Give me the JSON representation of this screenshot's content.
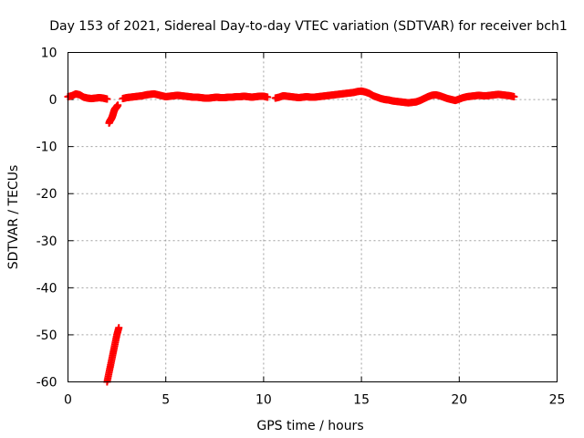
{
  "chart_data": {
    "type": "scatter",
    "title": "Day 153 of 2021, Sidereal Day-to-day VTEC variation (SDTVAR) for receiver bch1",
    "xlabel": "GPS time / hours",
    "ylabel": "SDTVAR / TECUs",
    "xlim": [
      0,
      25
    ],
    "ylim": [
      -60,
      10
    ],
    "xticks": [
      0,
      5,
      10,
      15,
      20,
      25
    ],
    "yticks": [
      -60,
      -50,
      -40,
      -30,
      -20,
      -10,
      0,
      10
    ],
    "grid": true,
    "marker": "plus",
    "series": [
      {
        "name": "SDTVAR",
        "color": "#ff0000",
        "segments": [
          {
            "x": [
              0.0,
              0.2,
              0.4,
              0.6,
              0.8,
              1.0,
              1.2,
              1.4,
              1.6,
              1.8,
              2.0
            ],
            "y": [
              0.6,
              0.8,
              1.2,
              1.0,
              0.5,
              0.3,
              0.2,
              0.3,
              0.4,
              0.3,
              0.1
            ]
          },
          {
            "x": [
              2.1,
              2.15,
              2.2,
              2.25,
              2.3,
              2.35,
              2.4,
              2.45,
              2.5,
              2.55
            ],
            "y": [
              -5.0,
              -4.5,
              -4.2,
              -3.8,
              -3.2,
              -2.5,
              -2.0,
              -1.8,
              -1.5,
              -1.2
            ]
          },
          {
            "x": [
              2.0,
              2.1,
              2.2,
              2.3,
              2.4,
              2.5,
              2.6
            ],
            "y": [
              -60.0,
              -58.0,
              -56.0,
              -54.0,
              -52.0,
              -50.0,
              -48.5
            ]
          },
          {
            "x": [
              2.8,
              3.0,
              3.2,
              3.4,
              3.6,
              3.8,
              4.0,
              4.2,
              4.4,
              4.6,
              4.8,
              5.0,
              5.2,
              5.4,
              5.6,
              5.8,
              6.0,
              6.2,
              6.4,
              6.6,
              6.8,
              7.0,
              7.2,
              7.4,
              7.6,
              7.8,
              8.0,
              8.2,
              8.4,
              8.6,
              8.8,
              9.0,
              9.2,
              9.4,
              9.6,
              9.8,
              10.0,
              10.2
            ],
            "y": [
              0.2,
              0.4,
              0.5,
              0.6,
              0.7,
              0.8,
              1.0,
              1.1,
              1.2,
              1.0,
              0.8,
              0.6,
              0.7,
              0.8,
              0.9,
              0.8,
              0.7,
              0.6,
              0.5,
              0.5,
              0.4,
              0.3,
              0.3,
              0.4,
              0.5,
              0.4,
              0.4,
              0.5,
              0.5,
              0.6,
              0.6,
              0.7,
              0.6,
              0.5,
              0.6,
              0.7,
              0.7,
              0.5
            ]
          },
          {
            "x": [
              10.6,
              10.8,
              11.0,
              11.2,
              11.4,
              11.6,
              11.8,
              12.0,
              12.2,
              12.4,
              12.6,
              12.8,
              13.0,
              13.2,
              13.4,
              13.6,
              13.8,
              14.0,
              14.2,
              14.4,
              14.6,
              14.8,
              15.0,
              15.2,
              15.4,
              15.6,
              15.8,
              16.0,
              16.2,
              16.4,
              16.6,
              16.8,
              17.0,
              17.2,
              17.4,
              17.6,
              17.8,
              18.0,
              18.2,
              18.4,
              18.6,
              18.8,
              19.0,
              19.2,
              19.4,
              19.6,
              19.8,
              20.0,
              20.2,
              20.4,
              20.6,
              20.8,
              21.0,
              21.2,
              21.4,
              21.6,
              21.8,
              22.0,
              22.2,
              22.4,
              22.6,
              22.8
            ],
            "y": [
              0.3,
              0.5,
              0.8,
              0.7,
              0.6,
              0.5,
              0.4,
              0.5,
              0.6,
              0.5,
              0.5,
              0.6,
              0.7,
              0.8,
              0.9,
              1.0,
              1.1,
              1.2,
              1.3,
              1.4,
              1.5,
              1.7,
              1.8,
              1.6,
              1.3,
              0.8,
              0.5,
              0.2,
              0.0,
              -0.1,
              -0.3,
              -0.4,
              -0.5,
              -0.6,
              -0.7,
              -0.6,
              -0.5,
              -0.2,
              0.2,
              0.6,
              0.9,
              1.0,
              0.8,
              0.5,
              0.2,
              0.0,
              -0.2,
              0.1,
              0.4,
              0.6,
              0.7,
              0.8,
              0.9,
              0.8,
              0.8,
              0.9,
              1.0,
              1.1,
              1.0,
              0.9,
              0.8,
              0.6
            ]
          }
        ]
      }
    ]
  }
}
